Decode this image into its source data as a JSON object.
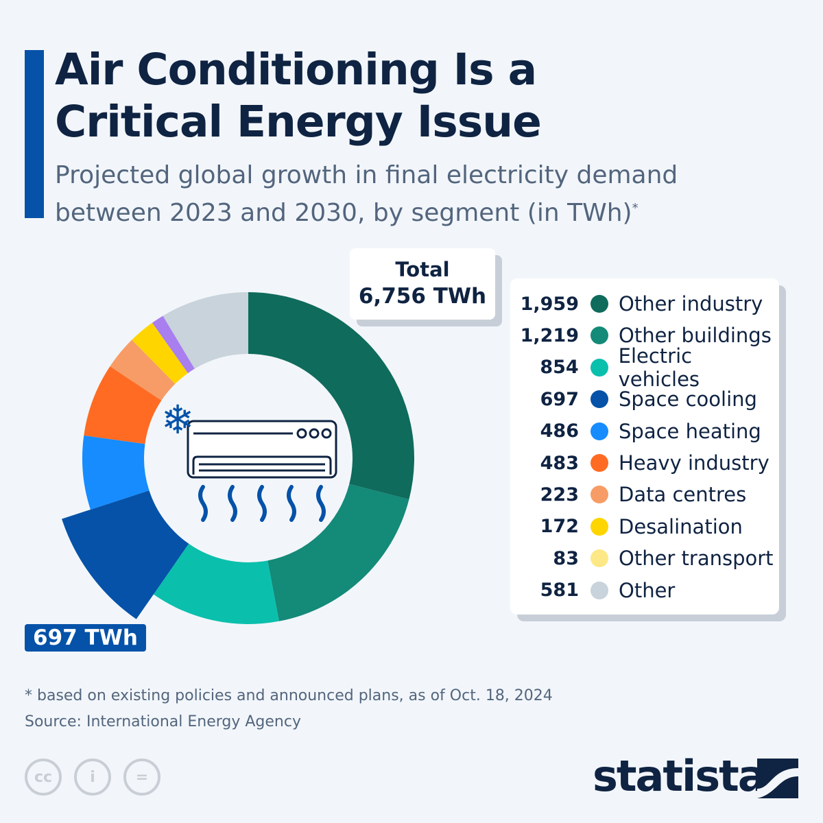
{
  "header": {
    "title_line1": "Air Conditioning Is a",
    "title_line2": "Critical Energy Issue",
    "subtitle": "Projected global growth in final electricity demand between 2023 and 2030, by segment (in TWh)",
    "subtitle_mark": "*"
  },
  "total": {
    "label": "Total",
    "value": "6,756 TWh"
  },
  "callout": "697 TWh",
  "chart_data": {
    "type": "pie",
    "variant": "donut",
    "unit": "TWh",
    "highlighted": "Space cooling",
    "legend_position": "right",
    "categories": [
      "Other industry",
      "Other buildings",
      "Electric vehicles",
      "Space cooling",
      "Space heating",
      "Heavy industry",
      "Data centres",
      "Desalination",
      "Other transport",
      "Other"
    ],
    "values": [
      1959,
      1219,
      854,
      697,
      486,
      483,
      223,
      172,
      83,
      581
    ],
    "value_labels": [
      "1,959",
      "1,219",
      "854",
      "697",
      "486",
      "483",
      "223",
      "172",
      "83",
      "581"
    ],
    "colors": [
      "#0f6b5c",
      "#148a78",
      "#0bbfad",
      "#0552a8",
      "#168cff",
      "#ff6b22",
      "#f79c66",
      "#ffd500",
      "#fde887",
      "#c8d3db"
    ],
    "slice_colors": [
      "#0f6b5c",
      "#148a78",
      "#0bbfad",
      "#0552a8",
      "#168cff",
      "#ff6b22",
      "#f79c66",
      "#ffd500",
      "#a97ff0",
      "#c8d3db"
    ]
  },
  "footer": {
    "note": "* based on existing policies and announced plans, as of Oct. 18, 2024",
    "source": "Source: International Energy Agency",
    "logo": "statista",
    "cc_icons": [
      "cc-icon",
      "attribution-icon",
      "no-derivatives-icon"
    ]
  }
}
